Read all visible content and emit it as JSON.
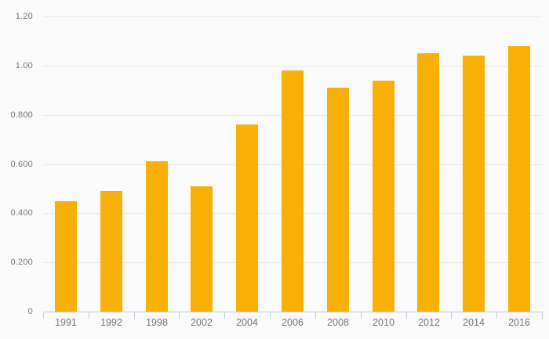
{
  "chart_data": {
    "type": "bar",
    "title": "",
    "xlabel": "",
    "ylabel": "",
    "categories": [
      "1991",
      "1992",
      "1998",
      "2002",
      "2004",
      "2006",
      "2008",
      "2010",
      "2012",
      "2014",
      "2016"
    ],
    "values": [
      0.45,
      0.49,
      0.61,
      0.51,
      0.76,
      0.98,
      0.91,
      0.94,
      1.05,
      1.04,
      1.08
    ],
    "ylim": [
      0,
      1.2
    ],
    "yticks": [
      {
        "value": 1.2,
        "label": "1.20"
      },
      {
        "value": 1.0,
        "label": "1.00"
      },
      {
        "value": 0.8,
        "label": "0.800"
      },
      {
        "value": 0.6,
        "label": "0.600"
      },
      {
        "value": 0.4,
        "label": "0.400"
      },
      {
        "value": 0.2,
        "label": "0.200"
      },
      {
        "value": 0,
        "label": "0"
      }
    ],
    "grid": true,
    "legend": false,
    "colors": {
      "bar": "#F9B006",
      "background": "#FAFAFA",
      "gridline": "#E7E7E7",
      "axis_line": "#BFCDDF",
      "label_text": "#757575"
    }
  }
}
